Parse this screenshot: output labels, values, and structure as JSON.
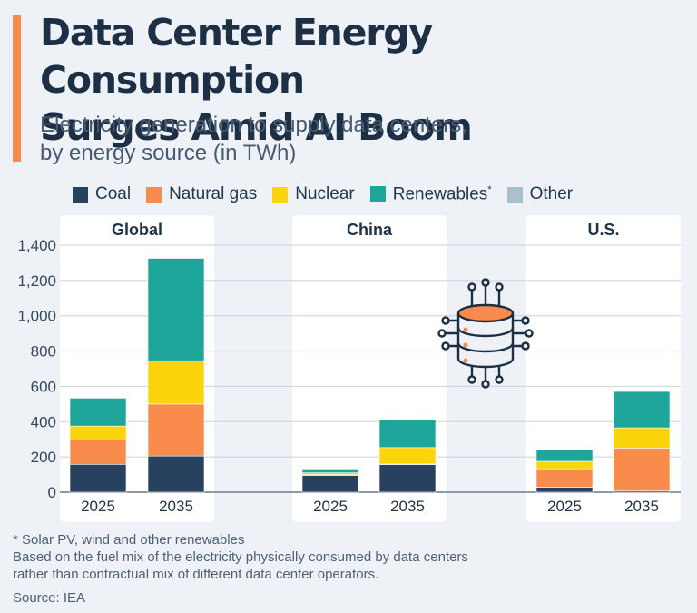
{
  "header": {
    "title_line1": "Data Center Energy Consumption",
    "title_line2": "Surges Amid AI Boom",
    "subtitle_line1": "Electricity generation to supply data centers,",
    "subtitle_line2": "by energy source (in TWh)",
    "accent_color": "#f98c4c"
  },
  "legend": [
    {
      "label": "Coal",
      "color": "#27415e"
    },
    {
      "label": "Natural gas",
      "color": "#f98b4c"
    },
    {
      "label": "Nuclear",
      "color": "#fcd40c"
    },
    {
      "label": "Renewables",
      "color": "#1fa69a",
      "superscript": "*"
    },
    {
      "label": "Other",
      "color": "#a7c0cc"
    }
  ],
  "chart_data": {
    "type": "bar",
    "stacked": true,
    "ylim": [
      0,
      1400
    ],
    "yticks": [
      "0",
      "200",
      "400",
      "600",
      "800",
      "1,000",
      "1,200",
      "1,400"
    ],
    "grid": true,
    "series_names": [
      "Coal",
      "Natural gas",
      "Nuclear",
      "Renewables",
      "Other"
    ],
    "colors": [
      "#27415e",
      "#f98b4c",
      "#fcd40c",
      "#1fa69a",
      "#a7c0cc"
    ],
    "panels": [
      {
        "title": "Global",
        "categories": [
          "2025",
          "2035"
        ],
        "stacks": [
          [
            158,
            137,
            80,
            158,
            0
          ],
          [
            205,
            295,
            245,
            580,
            5
          ]
        ]
      },
      {
        "title": "China",
        "categories": [
          "2025",
          "2035"
        ],
        "stacks": [
          [
            95,
            5,
            10,
            22,
            0
          ],
          [
            157,
            3,
            93,
            157,
            0
          ]
        ]
      },
      {
        "title": "U.S.",
        "categories": [
          "2025",
          "2035"
        ],
        "stacks": [
          [
            28,
            105,
            42,
            67,
            0
          ],
          [
            7,
            243,
            115,
            206,
            0
          ]
        ]
      }
    ]
  },
  "footer": {
    "note1": "* Solar PV, wind and other renewables",
    "note2": "Based on the fuel mix of the electricity physically consumed by data centers",
    "note3": "rather than contractual mix of different data center operators.",
    "source": "Source: IEA"
  },
  "icon": "server-database-icon"
}
